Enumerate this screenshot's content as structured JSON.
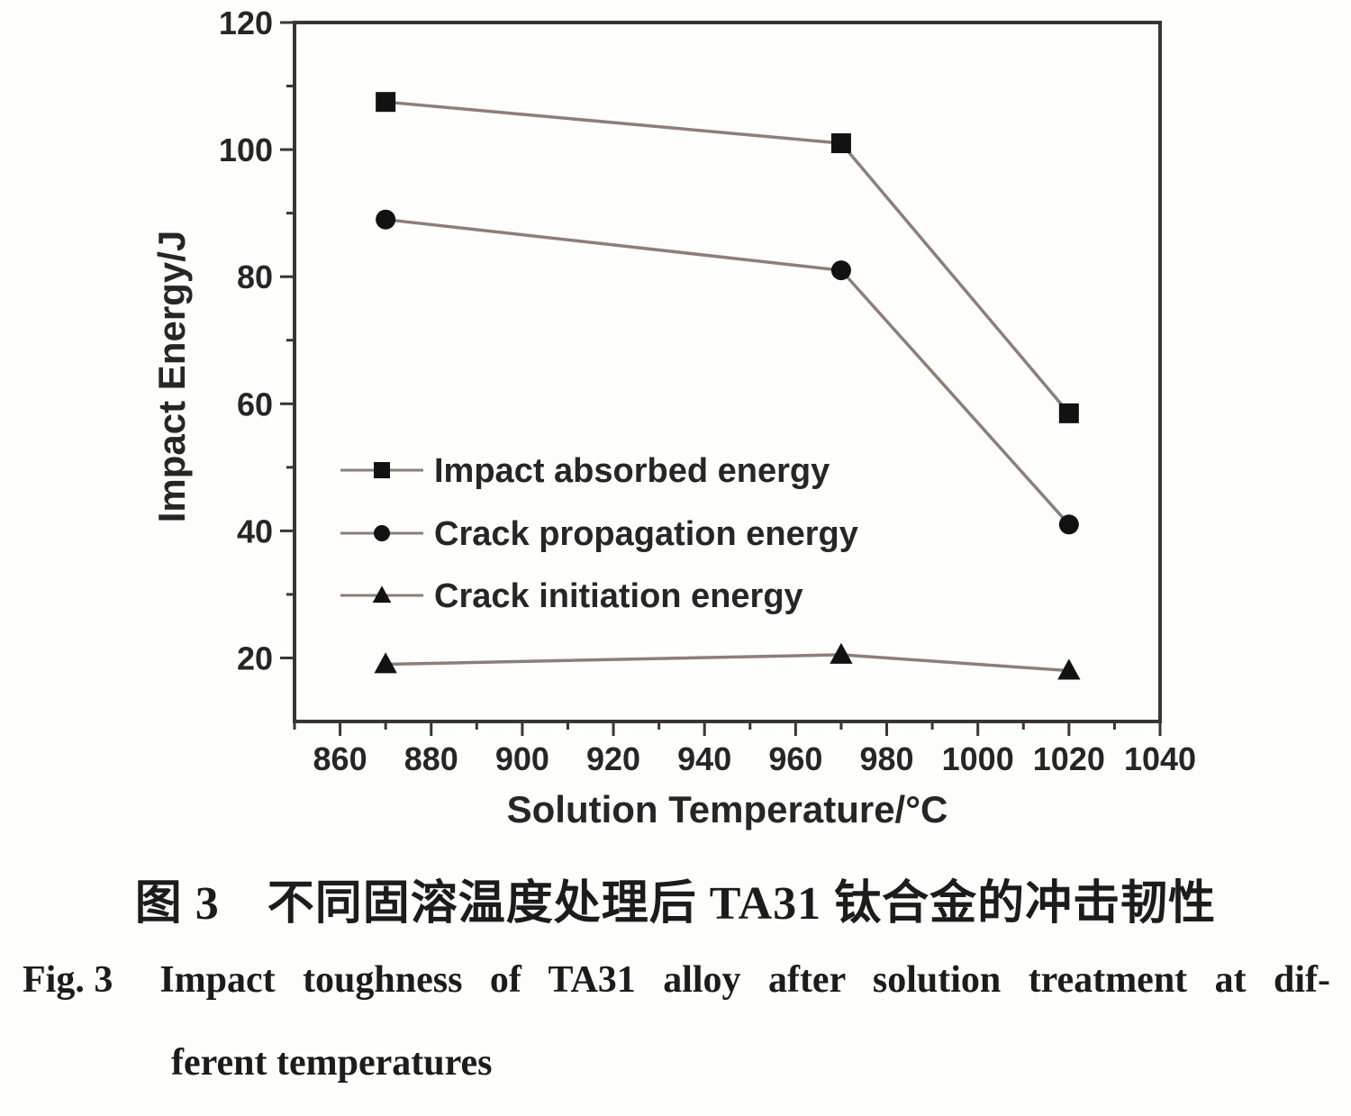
{
  "figure": {
    "caption_zh": "图 3　不同固溶温度处理后 TA31 钛合金的冲击韧性",
    "caption_en_fig": "Fig. 3",
    "caption_en_line1": "Impact toughness of TA31 alloy after solution treatment at dif-",
    "caption_en_line2": "ferent temperatures"
  },
  "chart_data": {
    "type": "line",
    "title": "",
    "xlabel": "Solution Temperature/°C",
    "ylabel": "Impact Energy/J",
    "xlim": [
      850,
      1040
    ],
    "ylim": [
      10,
      120
    ],
    "x_major_ticks": [
      860,
      880,
      900,
      920,
      940,
      960,
      980,
      1000,
      1020,
      1040
    ],
    "x_minor_step": 10,
    "y_major_ticks": [
      20,
      40,
      60,
      80,
      100,
      120
    ],
    "y_minor_step": 10,
    "grid": false,
    "legend_position": "center-left",
    "x": [
      870,
      970,
      1020
    ],
    "series": [
      {
        "name": "Impact absorbed energy",
        "marker": "square",
        "values": [
          107.5,
          101,
          58.5
        ]
      },
      {
        "name": "Crack propagation energy",
        "marker": "circle",
        "values": [
          89,
          81,
          41
        ]
      },
      {
        "name": "Crack initiation energy",
        "marker": "triangle",
        "values": [
          19,
          20.5,
          18
        ]
      }
    ],
    "colors": {
      "line": "#8d7e76",
      "marker": "#121212",
      "axis": "#3a3530",
      "text": "#262626"
    }
  }
}
